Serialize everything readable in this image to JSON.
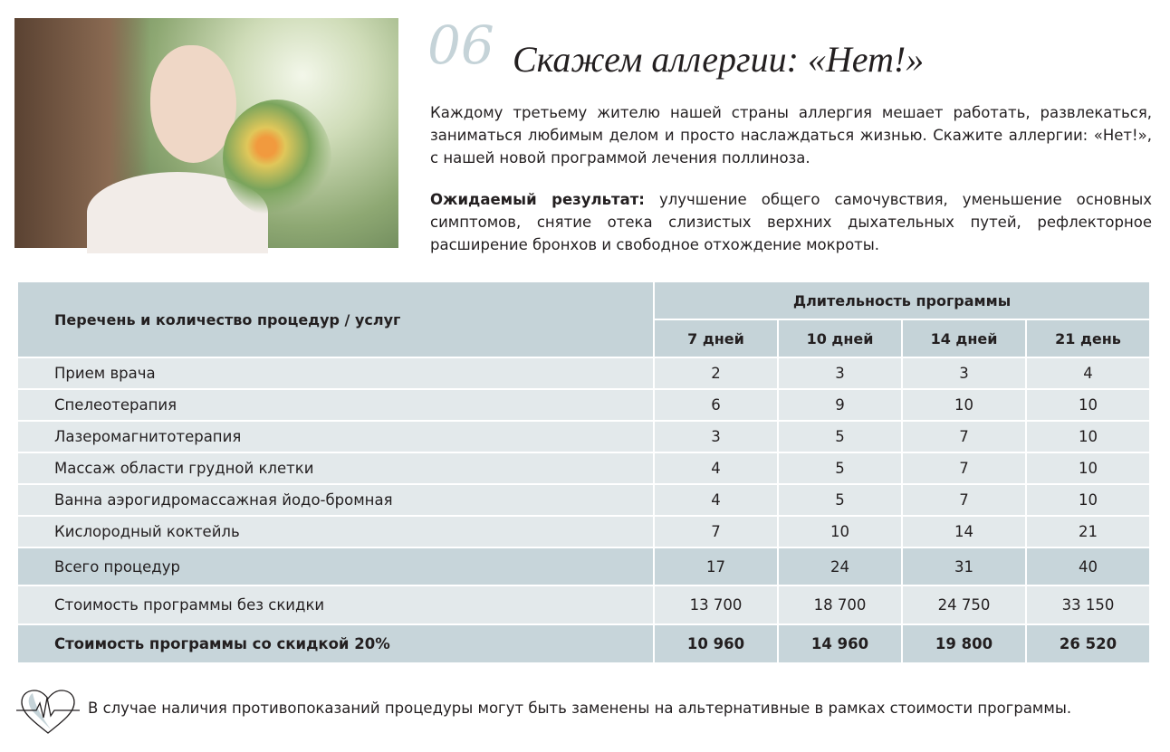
{
  "header": {
    "number": "06",
    "title": "Скажем аллергии: «Нет!»"
  },
  "intro": "Каждому третьему жителю нашей страны аллергия мешает работать, развлекаться, заниматься любимым делом и просто наслаждаться жизнью. Скажите аллергии: «Нет!», с нашей новой программой лечения поллиноза.",
  "result": {
    "label": "Ожидаемый результат:",
    "text": " улучшение общего самочувствия, уменьшение основных симптомов, снятие отека слизистых верхних дыхательных путей, рефлекторное расширение бронхов и свободное отхождение мокроты."
  },
  "table": {
    "col_header": "Перечень и количество процедур / услуг",
    "duration_header": "Длительность программы",
    "durations": [
      "7 дней",
      "10 дней",
      "14 дней",
      "21 день"
    ],
    "rows": [
      {
        "name": "Прием врача",
        "values": [
          "2",
          "3",
          "3",
          "4"
        ]
      },
      {
        "name": "Спелеотерапия",
        "values": [
          "6",
          "9",
          "10",
          "10"
        ]
      },
      {
        "name": "Лазеромагнитотерапия",
        "values": [
          "3",
          "5",
          "7",
          "10"
        ]
      },
      {
        "name": "Массаж области грудной клетки",
        "values": [
          "4",
          "5",
          "7",
          "10"
        ]
      },
      {
        "name": "Ванна аэрогидромассажная йодо-бромная",
        "values": [
          "4",
          "5",
          "7",
          "10"
        ]
      },
      {
        "name": "Кислородный коктейль",
        "values": [
          "7",
          "10",
          "14",
          "21"
        ]
      }
    ],
    "total": {
      "name": "Всего процедур",
      "values": [
        "17",
        "24",
        "31",
        "40"
      ]
    },
    "cost": {
      "name": "Стоимость программы без скидки",
      "values": [
        "13 700",
        "18 700",
        "24 750",
        "33 150"
      ]
    },
    "discount": {
      "name": "Стоимость программы со скидкой 20%",
      "values": [
        "10 960",
        "14 960",
        "19 800",
        "26 520"
      ]
    }
  },
  "footer": {
    "icon": "heart-pulse-icon",
    "note": "В случае наличия противопоказаний процедуры могут быть заменены на альтернативные в рамках стоимости программы."
  },
  "colors": {
    "header_bg": "#c5d3d8",
    "row_bg": "#e3e9eb"
  }
}
